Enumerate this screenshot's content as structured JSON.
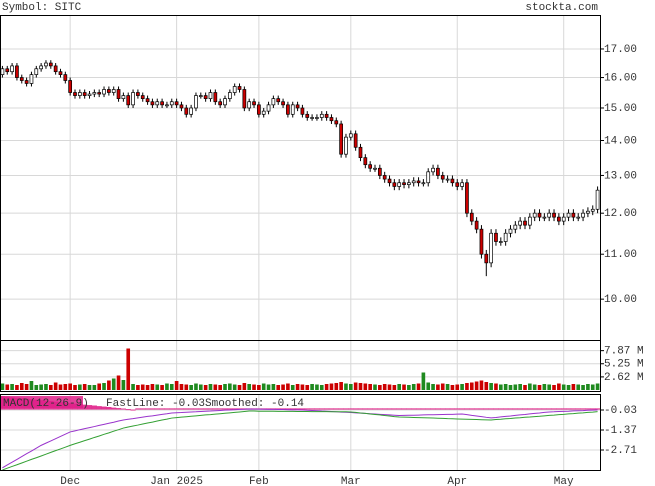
{
  "chart_data": [
    {
      "type": "candlestick",
      "title": "Symbol: SITC",
      "source": "stockta.com",
      "log": true,
      "grid": true,
      "up_color": "#ffffff",
      "down_color": "#cc0000",
      "categories": [
        null,
        null,
        null,
        null,
        null,
        null,
        null,
        null,
        null,
        null,
        null,
        null,
        null,
        null,
        "Dec",
        null,
        null,
        null,
        null,
        null,
        null,
        null,
        null,
        null,
        null,
        null,
        null,
        null,
        null,
        null,
        null,
        null,
        null,
        null,
        null,
        null,
        "Jan 2025",
        null,
        null,
        null,
        null,
        null,
        null,
        null,
        null,
        null,
        null,
        null,
        null,
        null,
        null,
        null,
        null,
        "Feb",
        null,
        null,
        null,
        null,
        null,
        null,
        null,
        null,
        null,
        null,
        null,
        null,
        null,
        null,
        null,
        null,
        null,
        null,
        "Mar",
        null,
        null,
        null,
        null,
        null,
        null,
        null,
        null,
        null,
        null,
        null,
        null,
        null,
        null,
        null,
        null,
        null,
        null,
        null,
        null,
        null,
        "Apr",
        null,
        null,
        null,
        null,
        null,
        null,
        null,
        null,
        null,
        null,
        null,
        null,
        null,
        null,
        null,
        null,
        null,
        null,
        null,
        null,
        null,
        "May",
        null,
        null,
        null,
        null,
        null,
        null,
        null
      ],
      "open": [
        16.1,
        16.3,
        16.2,
        16.4,
        16.0,
        15.9,
        15.8,
        16.1,
        16.3,
        16.4,
        16.5,
        16.4,
        16.2,
        16.1,
        15.9,
        15.5,
        15.4,
        15.5,
        15.4,
        15.45,
        15.5,
        15.45,
        15.6,
        15.5,
        15.6,
        15.3,
        15.4,
        15.1,
        15.5,
        15.4,
        15.3,
        15.2,
        15.1,
        15.2,
        15.1,
        15.1,
        15.2,
        15.1,
        15.0,
        14.8,
        15.0,
        15.4,
        15.4,
        15.3,
        15.5,
        15.2,
        15.1,
        15.3,
        15.5,
        15.7,
        15.6,
        15.0,
        15.2,
        15.1,
        14.8,
        14.9,
        15.1,
        15.3,
        15.2,
        15.1,
        14.8,
        15.1,
        15.0,
        14.8,
        14.7,
        14.7,
        14.7,
        14.8,
        14.7,
        14.6,
        14.5,
        13.6,
        14.1,
        14.2,
        13.8,
        13.5,
        13.3,
        13.2,
        13.2,
        13.0,
        12.9,
        12.8,
        12.7,
        12.8,
        12.75,
        12.8,
        12.85,
        12.8,
        12.8,
        13.1,
        13.2,
        13.0,
        12.9,
        12.9,
        12.8,
        12.7,
        12.8,
        12.0,
        11.8,
        11.6,
        11.0,
        10.8,
        11.5,
        11.3,
        11.3,
        11.5,
        11.6,
        11.7,
        11.8,
        11.7,
        11.9,
        12.0,
        11.9,
        11.9,
        12.0,
        11.9,
        11.8,
        11.9,
        12.0,
        11.9,
        11.9,
        12.0,
        12.05,
        12.1
      ],
      "high": [
        16.4,
        16.4,
        16.5,
        16.5,
        16.1,
        16.0,
        16.2,
        16.4,
        16.5,
        16.6,
        16.6,
        16.5,
        16.3,
        16.2,
        16.0,
        15.6,
        15.6,
        15.6,
        15.55,
        15.6,
        15.6,
        15.7,
        15.7,
        15.7,
        15.7,
        15.5,
        15.5,
        15.6,
        15.6,
        15.5,
        15.4,
        15.3,
        15.3,
        15.3,
        15.2,
        15.3,
        15.3,
        15.2,
        15.1,
        15.1,
        15.5,
        15.5,
        15.5,
        15.6,
        15.6,
        15.3,
        15.4,
        15.6,
        15.8,
        15.8,
        15.7,
        15.3,
        15.3,
        15.2,
        15.0,
        15.2,
        15.4,
        15.4,
        15.3,
        15.2,
        15.2,
        15.2,
        15.1,
        14.9,
        14.8,
        14.8,
        14.9,
        14.9,
        14.8,
        14.7,
        14.6,
        14.2,
        14.3,
        14.3,
        13.9,
        13.6,
        13.4,
        13.3,
        13.3,
        13.1,
        13.0,
        12.9,
        12.9,
        12.9,
        12.9,
        12.95,
        12.95,
        12.9,
        13.2,
        13.3,
        13.3,
        13.1,
        13.0,
        13.0,
        12.9,
        12.9,
        12.9,
        12.1,
        11.9,
        11.7,
        11.1,
        11.6,
        11.6,
        11.4,
        11.6,
        11.7,
        11.8,
        11.9,
        11.9,
        12.0,
        12.1,
        12.1,
        12.0,
        12.1,
        12.1,
        12.0,
        12.0,
        12.1,
        12.1,
        12.0,
        12.1,
        12.15,
        12.2,
        12.7
      ],
      "low": [
        16.0,
        16.1,
        16.1,
        15.9,
        15.8,
        15.7,
        15.7,
        16.0,
        16.2,
        16.3,
        16.3,
        16.1,
        16.0,
        15.8,
        15.4,
        15.3,
        15.3,
        15.3,
        15.3,
        15.35,
        15.35,
        15.35,
        15.4,
        15.4,
        15.2,
        15.2,
        15.0,
        15.0,
        15.3,
        15.2,
        15.1,
        15.0,
        15.0,
        15.0,
        15.0,
        15.0,
        15.0,
        14.9,
        14.7,
        14.7,
        14.9,
        15.3,
        15.2,
        15.2,
        15.1,
        15.0,
        15.0,
        15.2,
        15.4,
        15.5,
        14.9,
        14.9,
        15.0,
        14.7,
        14.7,
        14.8,
        15.0,
        15.1,
        15.0,
        14.7,
        14.7,
        14.9,
        14.7,
        14.6,
        14.6,
        14.6,
        14.6,
        14.6,
        14.5,
        14.4,
        13.5,
        13.5,
        14.0,
        13.7,
        13.4,
        13.2,
        13.1,
        13.1,
        12.9,
        12.8,
        12.7,
        12.6,
        12.6,
        12.65,
        12.65,
        12.7,
        12.7,
        12.7,
        12.7,
        13.0,
        12.9,
        12.8,
        12.8,
        12.7,
        12.6,
        12.6,
        11.9,
        11.7,
        11.5,
        10.9,
        10.5,
        10.7,
        11.2,
        11.2,
        11.2,
        11.4,
        11.5,
        11.6,
        11.6,
        11.6,
        11.8,
        11.8,
        11.8,
        11.8,
        11.8,
        11.7,
        11.7,
        11.8,
        11.8,
        11.8,
        11.8,
        11.9,
        11.95,
        12.0
      ],
      "close": [
        16.3,
        16.2,
        16.4,
        16.0,
        15.9,
        15.8,
        16.1,
        16.3,
        16.4,
        16.5,
        16.4,
        16.2,
        16.1,
        15.9,
        15.5,
        15.4,
        15.5,
        15.4,
        15.45,
        15.5,
        15.45,
        15.6,
        15.5,
        15.6,
        15.3,
        15.4,
        15.1,
        15.5,
        15.4,
        15.3,
        15.2,
        15.1,
        15.2,
        15.1,
        15.1,
        15.2,
        15.1,
        15.0,
        14.8,
        15.0,
        15.4,
        15.4,
        15.3,
        15.5,
        15.2,
        15.1,
        15.3,
        15.5,
        15.7,
        15.6,
        15.0,
        15.2,
        15.1,
        14.8,
        14.9,
        15.1,
        15.3,
        15.2,
        15.1,
        14.8,
        15.1,
        15.0,
        14.8,
        14.7,
        14.7,
        14.7,
        14.8,
        14.7,
        14.6,
        14.5,
        13.6,
        14.1,
        14.2,
        13.8,
        13.5,
        13.3,
        13.2,
        13.2,
        13.0,
        12.9,
        12.8,
        12.7,
        12.8,
        12.75,
        12.8,
        12.85,
        12.8,
        12.8,
        13.1,
        13.2,
        13.0,
        12.9,
        12.9,
        12.8,
        12.7,
        12.8,
        12.0,
        11.8,
        11.6,
        11.0,
        10.8,
        11.5,
        11.3,
        11.3,
        11.5,
        11.6,
        11.7,
        11.8,
        11.7,
        11.9,
        12.0,
        11.9,
        11.9,
        12.0,
        11.9,
        11.8,
        11.9,
        12.0,
        11.9,
        11.9,
        12.0,
        12.05,
        12.1,
        12.6
      ],
      "ylim": [
        9.17,
        18.27
      ],
      "yticks": [
        {
          "value": 17,
          "label": "17.00"
        },
        {
          "value": 16,
          "label": "16.00"
        },
        {
          "value": 15,
          "label": "15.00"
        },
        {
          "value": 14,
          "label": "14.00"
        },
        {
          "value": 13,
          "label": "13.00"
        },
        {
          "value": 12,
          "label": "12.00"
        },
        {
          "value": 11,
          "label": "11.00"
        },
        {
          "value": 10,
          "label": "10.00"
        }
      ]
    },
    {
      "type": "bar",
      "up_color": "#1f8a1f",
      "down_color": "#cc0000",
      "values": [
        1.3,
        1.1,
        1.2,
        1.0,
        1.4,
        1.2,
        1.8,
        1.0,
        1.1,
        1.2,
        1.0,
        1.5,
        1.1,
        1.2,
        1.3,
        1.0,
        1.1,
        1.2,
        1.0,
        1.0,
        1.3,
        1.4,
        1.9,
        2.3,
        2.9,
        2.0,
        8.3,
        1.2,
        1.0,
        1.1,
        1.0,
        1.2,
        1.1,
        1.0,
        1.3,
        1.2,
        1.8,
        1.2,
        1.1,
        1.0,
        1.3,
        1.1,
        1.0,
        1.2,
        1.1,
        1.0,
        1.2,
        1.3,
        1.1,
        1.0,
        1.4,
        1.2,
        1.1,
        1.0,
        1.3,
        1.1,
        1.2,
        1.0,
        1.1,
        1.3,
        1.0,
        1.2,
        1.1,
        1.0,
        1.2,
        1.1,
        1.0,
        1.2,
        1.3,
        1.4,
        1.6,
        1.3,
        1.2,
        1.5,
        1.4,
        1.3,
        1.2,
        1.1,
        1.0,
        1.2,
        1.1,
        1.0,
        1.2,
        1.1,
        1.0,
        1.2,
        1.3,
        3.5,
        1.5,
        1.2,
        1.1,
        1.3,
        1.2,
        1.0,
        1.1,
        1.2,
        1.4,
        1.5,
        1.7,
        1.9,
        1.6,
        1.4,
        1.3,
        1.1,
        1.2,
        1.0,
        1.1,
        1.2,
        1.0,
        1.3,
        1.1,
        1.0,
        1.2,
        1.1,
        1.0,
        1.3,
        1.1,
        1.0,
        1.2,
        1.1,
        1.0,
        1.2,
        1.1,
        1.3
      ],
      "ylim": [
        0,
        9.8
      ],
      "yticks": [
        {
          "value": 7.87,
          "label": "7.87 M"
        },
        {
          "value": 5.25,
          "label": "5.25 M"
        },
        {
          "value": 2.62,
          "label": "2.62 M"
        }
      ]
    },
    {
      "type": "macd",
      "title": "MACD(12-26-9)",
      "series": [
        {
          "name": "FastLine: -0.03",
          "color": "#9933cc",
          "values": [
            -3.9,
            -3.71,
            -3.53,
            -3.34,
            -3.15,
            -2.96,
            -2.78,
            -2.59,
            -2.4,
            -2.25,
            -2.1,
            -1.95,
            -1.8,
            -1.65,
            -1.5,
            -1.43,
            -1.35,
            -1.28,
            -1.21,
            -1.14,
            -1.06,
            -0.99,
            -0.92,
            -0.85,
            -0.77,
            -0.7,
            -0.65,
            -0.61,
            -0.56,
            -0.51,
            -0.46,
            -0.42,
            -0.37,
            -0.32,
            -0.28,
            -0.23,
            -0.21,
            -0.2,
            -0.18,
            -0.16,
            -0.15,
            -0.13,
            -0.11,
            -0.1,
            -0.08,
            -0.06,
            -0.04,
            -0.03,
            -0.01,
            0.01,
            0.02,
            0.04,
            0.03,
            0.03,
            0.02,
            0.01,
            0.01,
            0,
            0,
            -0.01,
            -0.02,
            -0.02,
            -0.03,
            -0.05,
            -0.06,
            -0.08,
            -0.1,
            -0.11,
            -0.13,
            -0.15,
            -0.17,
            -0.18,
            -0.2,
            -0.22,
            -0.24,
            -0.26,
            -0.28,
            -0.3,
            -0.32,
            -0.34,
            -0.36,
            -0.38,
            -0.4,
            -0.39,
            -0.38,
            -0.38,
            -0.37,
            -0.36,
            -0.35,
            -0.35,
            -0.34,
            -0.33,
            -0.32,
            -0.32,
            -0.31,
            -0.3,
            -0.34,
            -0.39,
            -0.43,
            -0.47,
            -0.52,
            -0.56,
            -0.53,
            -0.49,
            -0.46,
            -0.43,
            -0.39,
            -0.36,
            -0.33,
            -0.29,
            -0.26,
            -0.23,
            -0.19,
            -0.16,
            -0.15,
            -0.13,
            -0.12,
            -0.11,
            -0.09,
            -0.08,
            -0.07,
            -0.05,
            -0.04,
            -0.03
          ]
        },
        {
          "name": "Smoothed: -0.14",
          "color": "#33a033",
          "values": [
            -4.05,
            -3.93,
            -3.81,
            -3.7,
            -3.58,
            -3.46,
            -3.34,
            -3.23,
            -3.11,
            -2.99,
            -2.87,
            -2.75,
            -2.64,
            -2.52,
            -2.4,
            -2.29,
            -2.19,
            -2.08,
            -1.98,
            -1.87,
            -1.77,
            -1.66,
            -1.56,
            -1.45,
            -1.35,
            -1.24,
            -1.17,
            -1.1,
            -1.04,
            -0.97,
            -0.9,
            -0.84,
            -0.77,
            -0.7,
            -0.64,
            -0.57,
            -0.54,
            -0.51,
            -0.48,
            -0.45,
            -0.42,
            -0.39,
            -0.36,
            -0.34,
            -0.31,
            -0.28,
            -0.25,
            -0.22,
            -0.19,
            -0.16,
            -0.13,
            -0.1,
            -0.1,
            -0.11,
            -0.11,
            -0.11,
            -0.11,
            -0.12,
            -0.12,
            -0.12,
            -0.12,
            -0.13,
            -0.13,
            -0.13,
            -0.14,
            -0.14,
            -0.14,
            -0.14,
            -0.15,
            -0.15,
            -0.15,
            -0.15,
            -0.16,
            -0.19,
            -0.23,
            -0.26,
            -0.3,
            -0.33,
            -0.36,
            -0.4,
            -0.43,
            -0.47,
            -0.5,
            -0.51,
            -0.52,
            -0.53,
            -0.54,
            -0.55,
            -0.56,
            -0.57,
            -0.58,
            -0.59,
            -0.61,
            -0.62,
            -0.63,
            -0.64,
            -0.65,
            -0.66,
            -0.67,
            -0.68,
            -0.69,
            -0.7,
            -0.67,
            -0.65,
            -0.62,
            -0.6,
            -0.57,
            -0.55,
            -0.52,
            -0.5,
            -0.47,
            -0.45,
            -0.42,
            -0.39,
            -0.37,
            -0.34,
            -0.32,
            -0.29,
            -0.27,
            -0.24,
            -0.22,
            -0.19,
            -0.17,
            -0.14
          ]
        }
      ],
      "histogram": {
        "color": "#e0208a",
        "values": [
          0.9,
          0.87,
          0.83,
          0.8,
          0.77,
          0.73,
          0.7,
          0.67,
          0.63,
          0.6,
          0.57,
          0.53,
          0.5,
          0.47,
          0.43,
          0.4,
          0.37,
          0.33,
          0.3,
          0.27,
          0.23,
          0.2,
          0.17,
          0.13,
          0.1,
          0.07,
          0.03,
          0,
          0.08,
          0.08,
          0.08,
          0.08,
          0.08,
          0.08,
          0.08,
          0.08,
          0.08,
          0.08,
          0.08,
          0.08,
          0.08,
          0.08,
          0.08,
          0.08,
          0.08,
          0.08,
          0.08,
          0.08,
          0.08,
          0.08,
          0.08,
          0.08,
          0.08,
          0.08,
          0.08,
          0.08,
          0.08,
          0.08,
          0.08,
          0.08,
          0.08,
          0.08,
          0.08,
          0.08,
          0.08,
          0.08,
          0.08,
          0.08,
          0.08,
          0.08,
          0.08,
          0.08,
          0.08,
          0.08,
          0.08,
          0.08,
          0.08,
          0.08,
          0.08,
          0.08,
          0.08,
          0.08,
          0.08,
          0.08,
          0.08,
          0.08,
          0.08,
          0.08,
          0.08,
          0.08,
          0.08,
          0.08,
          0.08,
          0.08,
          0.08,
          0.08,
          0.08,
          0.08,
          0.08,
          0.08,
          0.08,
          0.08,
          0.08,
          0.08,
          0.08,
          0.08,
          0.08,
          0.08,
          0.08,
          0.08,
          0.08,
          0.08,
          0.08,
          0.08,
          0.08,
          0.08,
          0.08,
          0.08,
          0.08,
          0.08,
          0.08,
          0.08,
          0.08,
          0.08
        ]
      },
      "ylim": [
        -4.05,
        0.975
      ],
      "yticks": [
        -0.03,
        -1.37,
        -2.71
      ]
    }
  ]
}
